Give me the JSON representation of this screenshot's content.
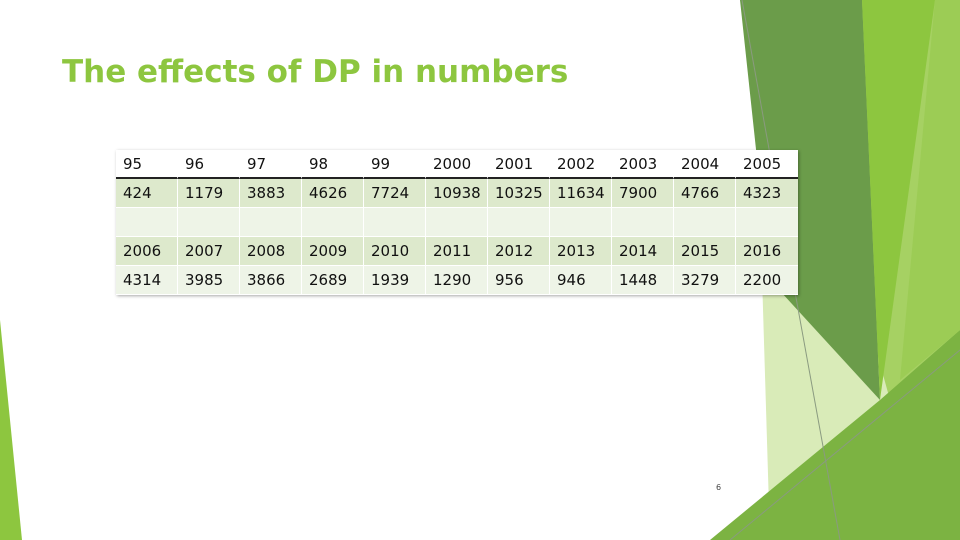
{
  "slide": {
    "title": "The effects of DP in numbers",
    "page_number": "6"
  },
  "table": {
    "rows": [
      [
        "95",
        "96",
        "97",
        "98",
        "99",
        "2000",
        "2001",
        "2002",
        "2003",
        "2004",
        "2005"
      ],
      [
        "424",
        "1179",
        "3883",
        "4626",
        "7724",
        "10938",
        "10325",
        "11634",
        "7900",
        "4766",
        "4323"
      ],
      [
        "",
        "",
        "",
        "",
        "",
        "",
        "",
        "",
        "",
        "",
        ""
      ],
      [
        "2006",
        "2007",
        "2008",
        "2009",
        "2010",
        "2011",
        "2012",
        "2013",
        "2014",
        "2015",
        "2016"
      ],
      [
        "4314",
        "3985",
        "3866",
        "2689",
        "1939",
        "1290",
        "956",
        "946",
        "1448",
        "3279",
        "2200"
      ]
    ]
  },
  "theme": {
    "accent": "#8dc63f",
    "dark_green": "#5f9a3a",
    "light_green": "#c8e09e",
    "row_dark": "#dde9cc",
    "row_light": "#eef4e7"
  }
}
